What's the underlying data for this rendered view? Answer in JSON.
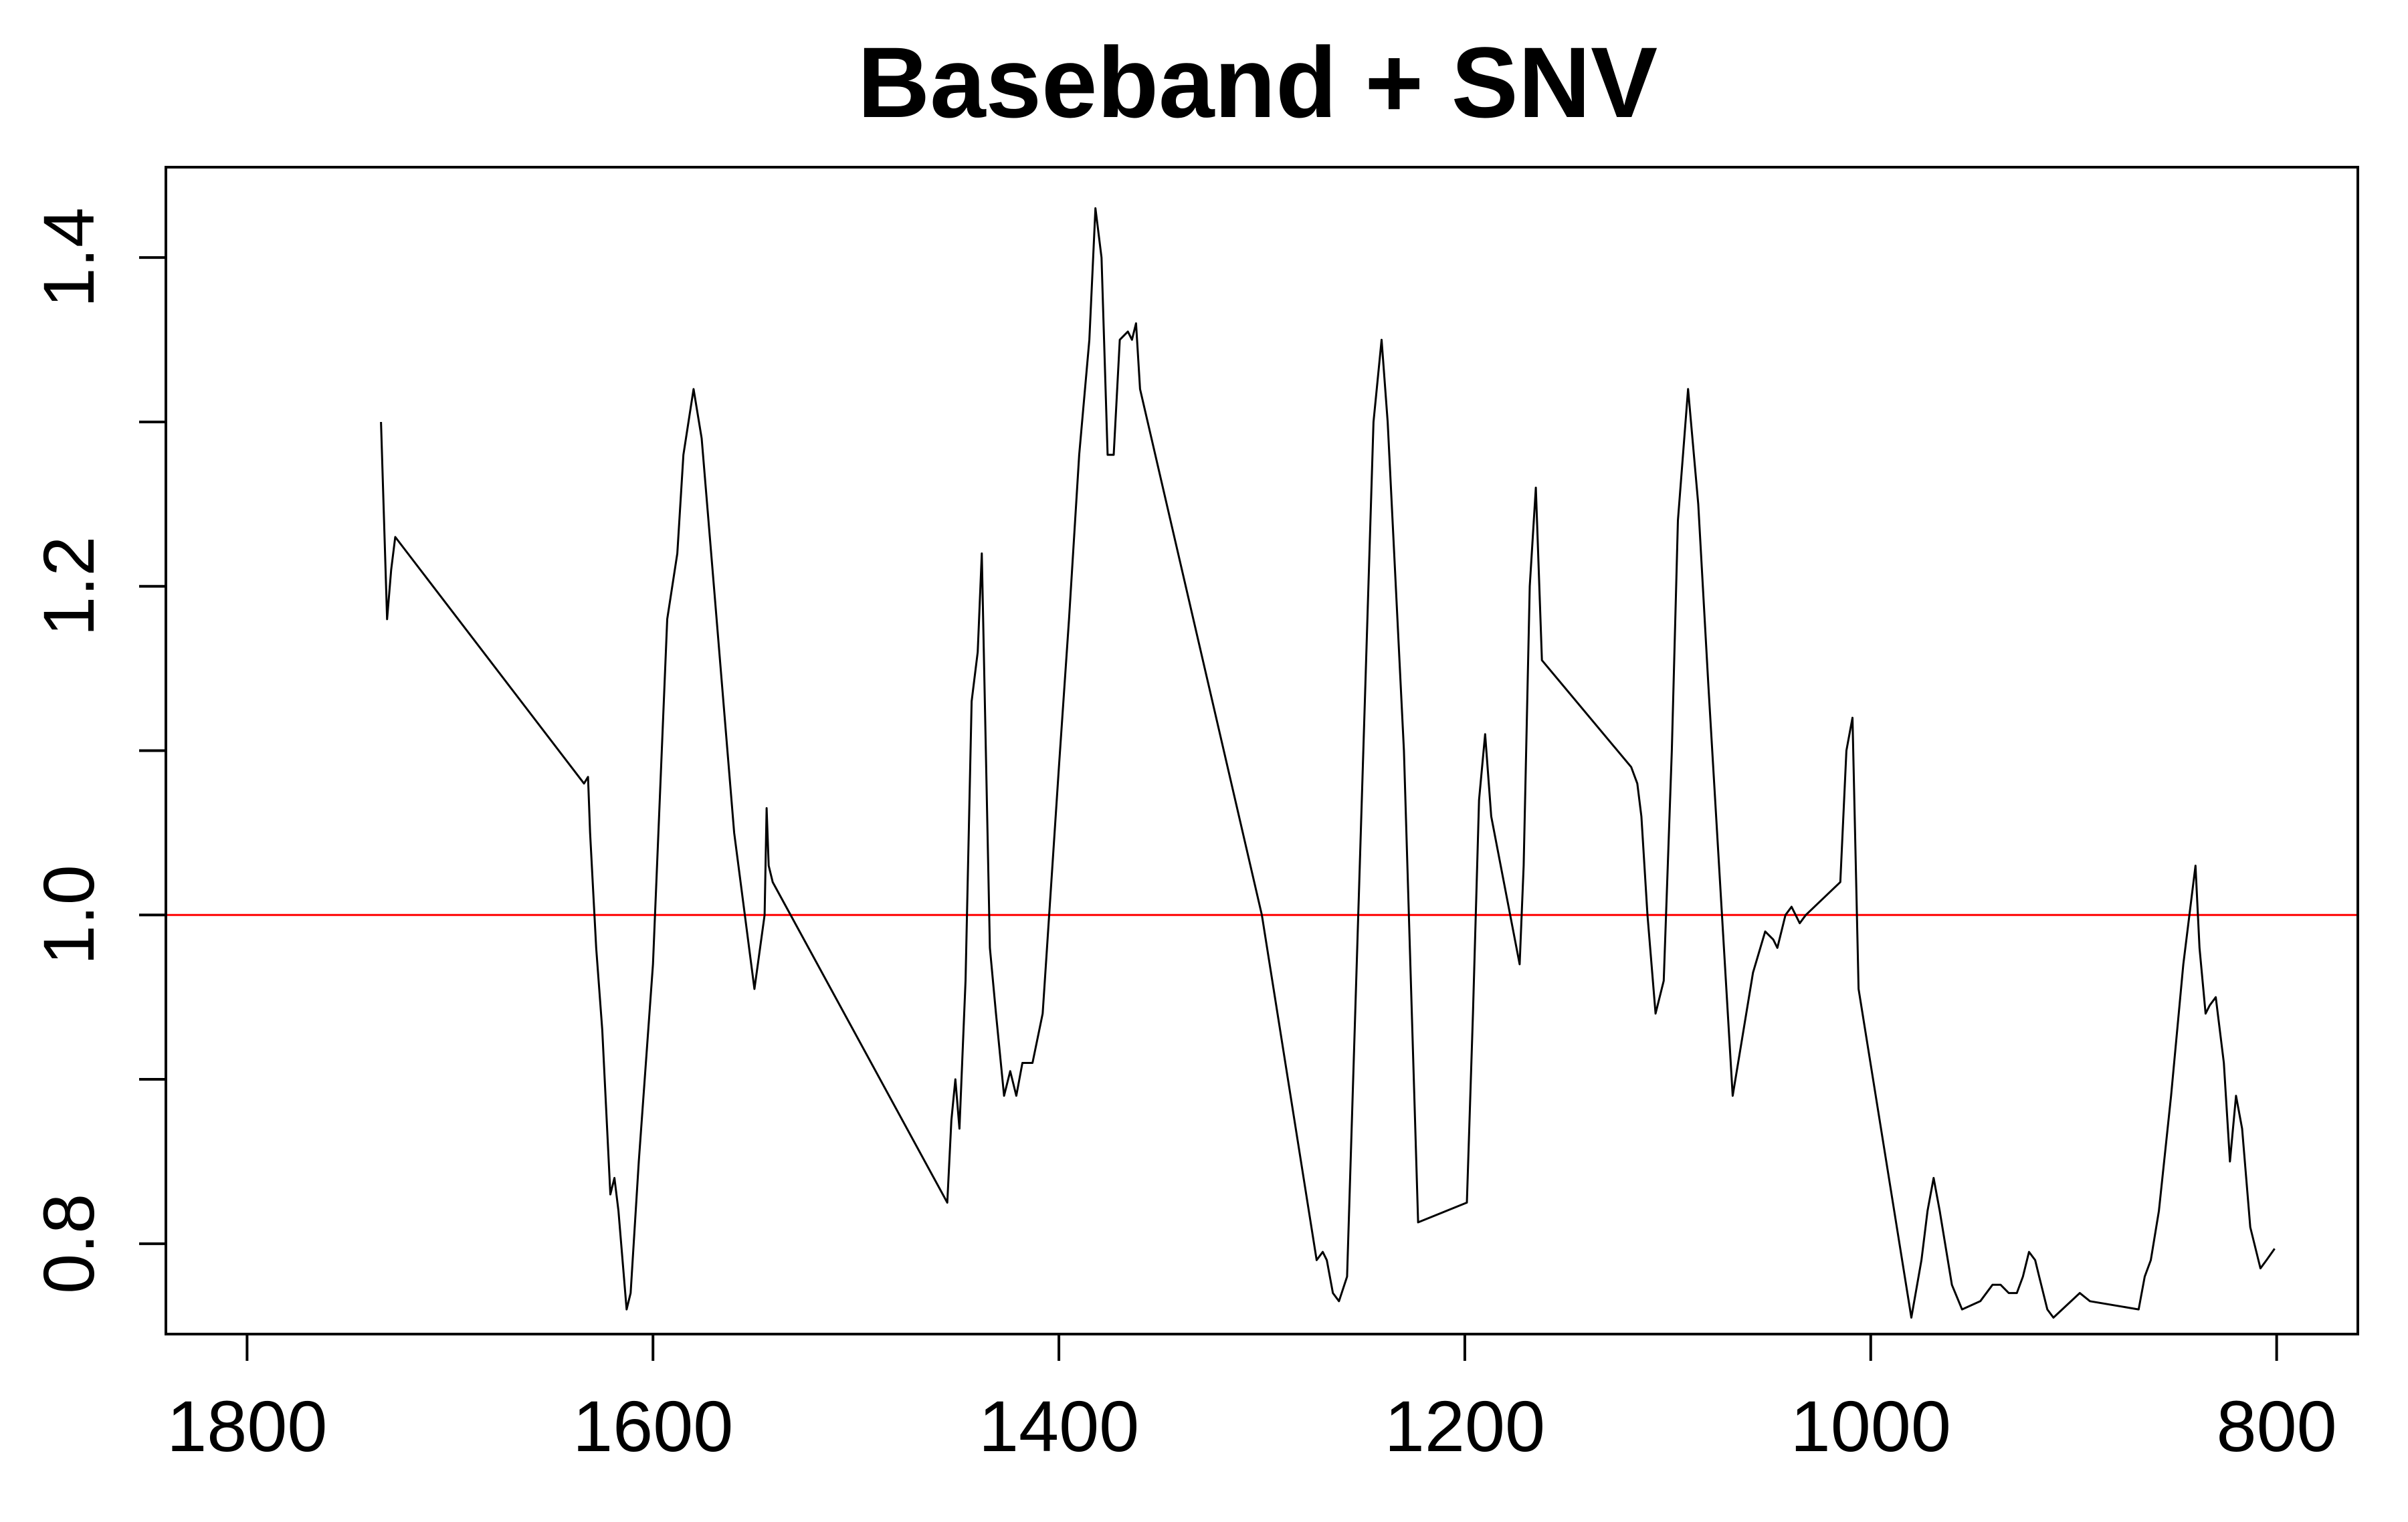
{
  "chart_data": {
    "type": "line",
    "title": "Baseband + SNV",
    "xlabel": "",
    "ylabel": "",
    "xlim": [
      1840,
      760
    ],
    "ylim": [
      0.745,
      1.455
    ],
    "x_reversed": true,
    "grid": false,
    "legend": "none",
    "x_ticks": [
      1800,
      1600,
      1400,
      1200,
      1000,
      800
    ],
    "x_tick_labels": [
      "1800",
      "1600",
      "1400",
      "1200",
      "1000",
      "800"
    ],
    "y_ticks": [
      0.8,
      0.9,
      1.0,
      1.1,
      1.2,
      1.3,
      1.4
    ],
    "y_tick_labels": [
      "0.8",
      "1.0",
      "1.2",
      "1.4"
    ],
    "y_labeled_ticks": [
      0.8,
      1.0,
      1.2,
      1.4
    ],
    "reference_line": {
      "y": 1.0,
      "color": "#ff0000"
    },
    "series": [
      {
        "color": "#000000",
        "x": [
          1734,
          1731,
          1729,
          1727,
          1634,
          1632,
          1631,
          1628,
          1625,
          1621,
          1619,
          1617,
          1613,
          1611,
          1607,
          1600,
          1593,
          1588,
          1585,
          1580,
          1576,
          1570,
          1560,
          1550,
          1545,
          1544,
          1543,
          1541,
          1455,
          1453,
          1451,
          1449,
          1446,
          1443,
          1440,
          1438,
          1434,
          1431,
          1427,
          1424,
          1421,
          1418,
          1413,
          1408,
          1400,
          1395,
          1390,
          1385,
          1382,
          1379,
          1376,
          1373,
          1370,
          1366,
          1364,
          1362,
          1360,
          1300,
          1273,
          1270,
          1268,
          1265,
          1262,
          1258,
          1250,
          1245,
          1241,
          1238,
          1230,
          1223,
          1199,
          1196,
          1193,
          1190,
          1187,
          1173,
          1171,
          1168,
          1165,
          1162,
          1118,
          1115,
          1113,
          1110,
          1106,
          1102,
          1098,
          1095,
          1090,
          1085,
          1080,
          1068,
          1058,
          1052,
          1048,
          1046,
          1042,
          1039,
          1035,
          1032,
          1015,
          1012,
          1009,
          1006,
          980,
          975,
          972,
          969,
          966,
          960,
          955,
          946,
          940,
          936,
          932,
          928,
          925,
          922,
          919,
          917,
          913,
          910,
          897,
          892,
          868,
          865,
          862,
          858,
          852,
          846,
          843,
          840,
          838,
          835,
          833,
          830,
          826,
          823,
          820,
          817,
          813,
          808,
          805,
          801
        ],
        "y": [
          1.3,
          1.18,
          1.21,
          1.23,
          1.08,
          1.084,
          1.05,
          0.98,
          0.93,
          0.83,
          0.84,
          0.82,
          0.76,
          0.77,
          0.85,
          0.97,
          1.18,
          1.22,
          1.28,
          1.32,
          1.29,
          1.2,
          1.05,
          0.955,
          1.0,
          1.065,
          1.03,
          1.02,
          0.825,
          0.875,
          0.9,
          0.87,
          0.96,
          1.13,
          1.16,
          1.22,
          0.98,
          0.94,
          0.89,
          0.905,
          0.89,
          0.91,
          0.91,
          0.94,
          1.09,
          1.18,
          1.28,
          1.35,
          1.43,
          1.4,
          1.28,
          1.28,
          1.35,
          1.355,
          1.35,
          1.36,
          1.32,
          1.0,
          0.79,
          0.795,
          0.79,
          0.77,
          0.765,
          0.78,
          1.1,
          1.3,
          1.35,
          1.3,
          1.1,
          0.813,
          0.825,
          0.94,
          1.07,
          1.11,
          1.06,
          0.97,
          1.03,
          1.2,
          1.26,
          1.155,
          1.09,
          1.08,
          1.06,
          1.0,
          0.94,
          0.96,
          1.1,
          1.24,
          1.32,
          1.25,
          1.14,
          0.89,
          0.965,
          0.99,
          0.985,
          0.98,
          1.0,
          1.005,
          0.995,
          1.0,
          1.02,
          1.1,
          1.12,
          0.955,
          0.755,
          0.79,
          0.82,
          0.84,
          0.82,
          0.775,
          0.76,
          0.765,
          0.775,
          0.775,
          0.77,
          0.77,
          0.78,
          0.795,
          0.79,
          0.78,
          0.76,
          0.755,
          0.77,
          0.765,
          0.76,
          0.78,
          0.79,
          0.82,
          0.89,
          0.97,
          1.0,
          1.03,
          0.98,
          0.94,
          0.945,
          0.95,
          0.91,
          0.85,
          0.89,
          0.87,
          0.81,
          0.785,
          0.79,
          0.797
        ]
      }
    ]
  }
}
